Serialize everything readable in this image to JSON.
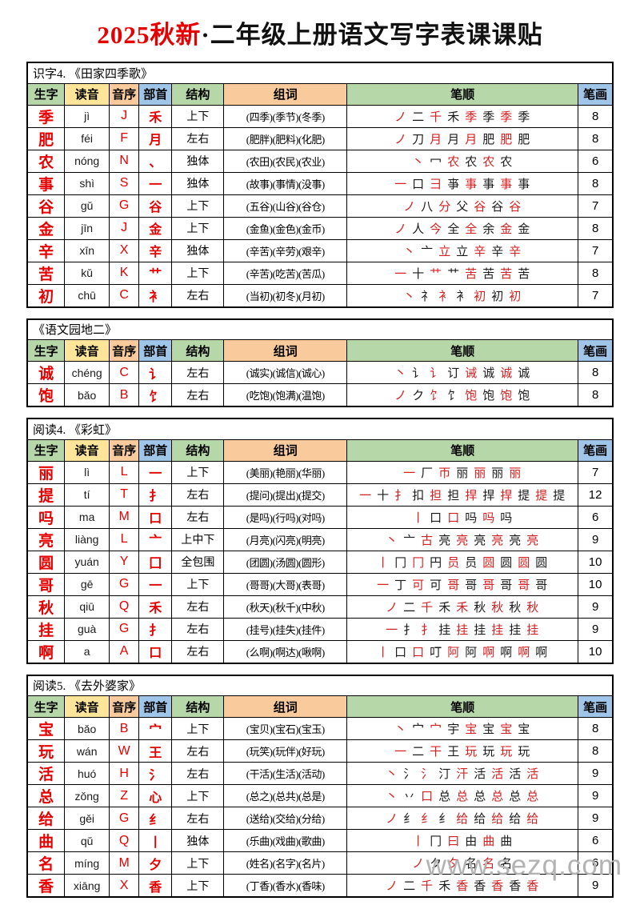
{
  "title": {
    "highlight": "2025秋新",
    "rest": "·二年级上册语文写字表课课贴"
  },
  "watermark": "www.sezq.com",
  "colors": {
    "header_green": "#b6d7a8",
    "header_yellow": "#ffe599",
    "header_peach": "#f9cb9c",
    "header_blue": "#9fc5e8",
    "accent_red": "#e60000",
    "stroke_red": "#d42020",
    "watermark_gray": "#b3b3b3"
  },
  "column_headers": [
    "生字",
    "读音",
    "音序",
    "部首",
    "结构",
    "组词",
    "笔顺",
    "笔画"
  ],
  "column_widths": [
    "6.4%",
    "7.6%",
    "5.1%",
    "5.6%",
    "8.9%",
    "21.0%",
    "39.5%",
    "5.9%"
  ],
  "header_colors": [
    "green",
    "yellow",
    "peach",
    "blue",
    "green",
    "peach",
    "green",
    "blue"
  ],
  "tables": [
    {
      "caption": "识字4. 《田家四季歌》",
      "rows": [
        {
          "char": "季",
          "pinyin": "jì",
          "initial": "J",
          "radical": "禾",
          "structure": "上下",
          "words": "(四季)(季节)(冬季)",
          "strokes": [
            "ノ",
            "二",
            "千",
            "禾",
            "季",
            "季",
            "季",
            "季"
          ],
          "count": "8"
        },
        {
          "char": "肥",
          "pinyin": "féi",
          "initial": "F",
          "radical": "月",
          "structure": "左右",
          "words": "(肥胖)(肥料)(化肥)",
          "strokes": [
            "ノ",
            "刀",
            "月",
            "月",
            "月",
            "肥",
            "肥",
            "肥"
          ],
          "count": "8"
        },
        {
          "char": "农",
          "pinyin": "nóng",
          "initial": "N",
          "radical": "、",
          "structure": "独体",
          "words": "(农田)(农民)(农业)",
          "strokes": [
            "丶",
            "冖",
            "农",
            "农",
            "农",
            "农"
          ],
          "count": "6"
        },
        {
          "char": "事",
          "pinyin": "shì",
          "initial": "S",
          "radical": "一",
          "structure": "独体",
          "words": "(故事)(事情)(没事)",
          "strokes": [
            "一",
            "口",
            "彐",
            "亊",
            "事",
            "事",
            "事",
            "事"
          ],
          "count": "8"
        },
        {
          "char": "谷",
          "pinyin": "gǔ",
          "initial": "G",
          "radical": "谷",
          "structure": "上下",
          "words": "(五谷)(山谷)(谷仓)",
          "strokes": [
            "ノ",
            "八",
            "分",
            "父",
            "谷",
            "谷",
            "谷"
          ],
          "count": "7"
        },
        {
          "char": "金",
          "pinyin": "jīn",
          "initial": "J",
          "radical": "金",
          "structure": "上下",
          "words": "(金鱼)(金色)(金币)",
          "strokes": [
            "ノ",
            "人",
            "今",
            "全",
            "全",
            "余",
            "金",
            "金"
          ],
          "count": "8"
        },
        {
          "char": "辛",
          "pinyin": "xīn",
          "initial": "X",
          "radical": "辛",
          "structure": "独体",
          "words": "(辛苦)(辛劳)(艰辛)",
          "strokes": [
            "丶",
            "亠",
            "立",
            "立",
            "辛",
            "辛",
            "辛"
          ],
          "count": "7"
        },
        {
          "char": "苦",
          "pinyin": "kǔ",
          "initial": "K",
          "radical": "艹",
          "structure": "上下",
          "words": "(辛苦)(吃苦)(苦瓜)",
          "strokes": [
            "一",
            "十",
            "艹",
            "艹",
            "苦",
            "苦",
            "苦",
            "苦"
          ],
          "count": "8"
        },
        {
          "char": "初",
          "pinyin": "chū",
          "initial": "C",
          "radical": "衤",
          "structure": "左右",
          "words": "(当初)(初冬)(月初)",
          "strokes": [
            "丶",
            "礻",
            "衤",
            "衤",
            "初",
            "初",
            "初"
          ],
          "count": "7"
        }
      ]
    },
    {
      "caption": "《语文园地二》",
      "rows": [
        {
          "char": "诚",
          "pinyin": "chéng",
          "initial": "C",
          "radical": "讠",
          "structure": "左右",
          "words": "(诚实)(诚信)(诚心)",
          "strokes": [
            "丶",
            "讠",
            "讠",
            "订",
            "诫",
            "诚",
            "诚",
            "诚"
          ],
          "count": "8"
        },
        {
          "char": "饱",
          "pinyin": "bǎo",
          "initial": "B",
          "radical": "饣",
          "structure": "左右",
          "words": "(吃饱)(饱满)(温饱)",
          "strokes": [
            "ノ",
            "ク",
            "饣",
            "饣",
            "饱",
            "饱",
            "饱",
            "饱"
          ],
          "count": "8"
        }
      ]
    },
    {
      "caption": "阅读4. 《彩虹》",
      "rows": [
        {
          "char": "丽",
          "pinyin": "lì",
          "initial": "L",
          "radical": "一",
          "structure": "上下",
          "words": "(美丽)(艳丽)(华丽)",
          "strokes": [
            "一",
            "厂",
            "帀",
            "丽",
            "丽",
            "丽",
            "丽"
          ],
          "count": "7"
        },
        {
          "char": "提",
          "pinyin": "tí",
          "initial": "T",
          "radical": "扌",
          "structure": "左右",
          "words": "(提问)(提出)(提交)",
          "strokes": [
            "一",
            "十",
            "扌",
            "扣",
            "担",
            "担",
            "捍",
            "捍",
            "捍",
            "提",
            "提",
            "提"
          ],
          "count": "12"
        },
        {
          "char": "吗",
          "pinyin": "ma",
          "initial": "M",
          "radical": "口",
          "structure": "左右",
          "words": "(是吗)(行吗)(对吗)",
          "strokes": [
            "丨",
            "口",
            "口",
            "吗",
            "吗",
            "吗"
          ],
          "count": "6"
        },
        {
          "char": "亮",
          "pinyin": "liàng",
          "initial": "L",
          "radical": "亠",
          "structure": "上中下",
          "words": "(月亮)(闪亮)(明亮)",
          "strokes": [
            "丶",
            "亠",
            "古",
            "亮",
            "亮",
            "亮",
            "亮",
            "亮",
            "亮"
          ],
          "count": "9"
        },
        {
          "char": "圆",
          "pinyin": "yuán",
          "initial": "Y",
          "radical": "囗",
          "structure": "全包围",
          "words": "(团圆)(汤圆)(圆形)",
          "strokes": [
            "丨",
            "冂",
            "冂",
            "円",
            "员",
            "员",
            "圆",
            "圆",
            "圆",
            "圆"
          ],
          "count": "10"
        },
        {
          "char": "哥",
          "pinyin": "gē",
          "initial": "G",
          "radical": "一",
          "structure": "上下",
          "words": "(哥哥)(大哥)(表哥)",
          "strokes": [
            "一",
            "丁",
            "可",
            "可",
            "哥",
            "哥",
            "哥",
            "哥",
            "哥",
            "哥"
          ],
          "count": "10"
        },
        {
          "char": "秋",
          "pinyin": "qiū",
          "initial": "Q",
          "radical": "禾",
          "structure": "左右",
          "words": "(秋天)(秋千)(中秋)",
          "strokes": [
            "ノ",
            "二",
            "千",
            "禾",
            "禾",
            "秋",
            "秋",
            "秋",
            "秋"
          ],
          "count": "9"
        },
        {
          "char": "挂",
          "pinyin": "guà",
          "initial": "G",
          "radical": "扌",
          "structure": "左右",
          "words": "(挂号)(挂失)(挂件)",
          "strokes": [
            "一",
            "扌",
            "扌",
            "挂",
            "挂",
            "挂",
            "挂",
            "挂",
            "挂"
          ],
          "count": "9"
        },
        {
          "char": "啊",
          "pinyin": "a",
          "initial": "A",
          "radical": "口",
          "structure": "左右",
          "words": "(么啊)(啊达)(啾啊)",
          "strokes": [
            "丨",
            "口",
            "口",
            "叮",
            "阿",
            "阿",
            "啊",
            "啊",
            "啊",
            "啊"
          ],
          "count": "10"
        }
      ]
    },
    {
      "caption": "阅读5. 《去外婆家》",
      "rows": [
        {
          "char": "宝",
          "pinyin": "bǎo",
          "initial": "B",
          "radical": "宀",
          "structure": "上下",
          "words": "(宝贝)(宝石)(宝玉)",
          "strokes": [
            "丶",
            "宀",
            "宀",
            "宇",
            "宝",
            "宝",
            "宝",
            "宝"
          ],
          "count": "8"
        },
        {
          "char": "玩",
          "pinyin": "wán",
          "initial": "W",
          "radical": "王",
          "structure": "左右",
          "words": "(玩笑)(玩伴)(好玩)",
          "strokes": [
            "一",
            "二",
            "干",
            "王",
            "玩",
            "玩",
            "玩",
            "玩"
          ],
          "count": "8"
        },
        {
          "char": "活",
          "pinyin": "huó",
          "initial": "H",
          "radical": "氵",
          "structure": "左右",
          "words": "(干活)(生活)(活动)",
          "strokes": [
            "丶",
            "氵",
            "氵",
            "汀",
            "汗",
            "活",
            "活",
            "活",
            "活"
          ],
          "count": "9"
        },
        {
          "char": "总",
          "pinyin": "zǒng",
          "initial": "Z",
          "radical": "心",
          "structure": "上下",
          "words": "(总之)(总共)(总是)",
          "strokes": [
            "丶",
            "丷",
            "口",
            "总",
            "总",
            "总",
            "总",
            "总",
            "总"
          ],
          "count": "9"
        },
        {
          "char": "给",
          "pinyin": "gěi",
          "initial": "G",
          "radical": "纟",
          "structure": "左右",
          "words": "(送给)(交给)(分给)",
          "strokes": [
            "ノ",
            "纟",
            "纟",
            "纟",
            "给",
            "给",
            "给",
            "给",
            "给"
          ],
          "count": "9"
        },
        {
          "char": "曲",
          "pinyin": "qǔ",
          "initial": "Q",
          "radical": "丨",
          "structure": "独体",
          "words": "(乐曲)(戏曲)(歌曲)",
          "strokes": [
            "丨",
            "冂",
            "曰",
            "由",
            "曲",
            "曲"
          ],
          "count": "6"
        },
        {
          "char": "名",
          "pinyin": "míng",
          "initial": "M",
          "radical": "夕",
          "structure": "上下",
          "words": "(姓名)(名字)(名片)",
          "strokes": [
            "ノ",
            "ク",
            "夕",
            "名",
            "名",
            "名"
          ],
          "count": "6"
        },
        {
          "char": "香",
          "pinyin": "xiāng",
          "initial": "X",
          "radical": "香",
          "structure": "上下",
          "words": "(丁香)(香水)(香味)",
          "strokes": [
            "ノ",
            "二",
            "千",
            "禾",
            "香",
            "香",
            "香",
            "香",
            "香"
          ],
          "count": "9"
        }
      ]
    }
  ]
}
